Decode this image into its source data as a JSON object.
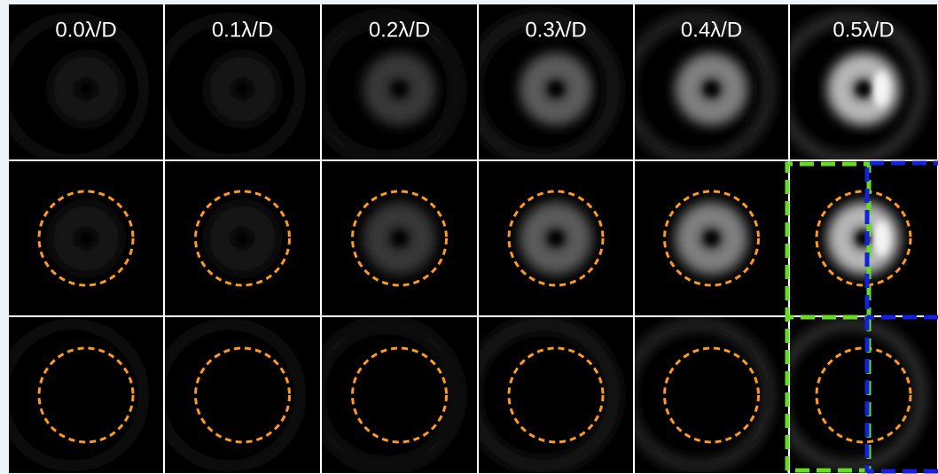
{
  "columns": [
    {
      "label": "0.0λ/D"
    },
    {
      "label": "0.1λ/D"
    },
    {
      "label": "0.2λ/D"
    },
    {
      "label": "0.3λ/D"
    },
    {
      "label": "0.4λ/D"
    },
    {
      "label": "0.5λ/D"
    }
  ]
}
